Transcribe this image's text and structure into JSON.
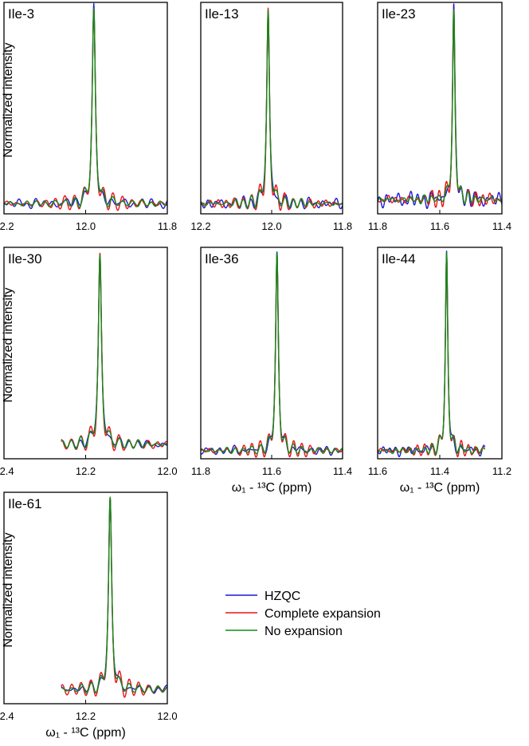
{
  "colors": {
    "HZQC": "#1a1adc",
    "Complete expansion": "#e8141b",
    "No expansion": "#158a15"
  },
  "legend": [
    "HZQC",
    "Complete expansion",
    "No expansion"
  ],
  "chart_data": [
    {
      "type": "line",
      "title": "Ile-3",
      "xlabel": "",
      "ylabel": "Normalized intensity",
      "xlim": [
        12.2,
        11.8
      ],
      "xticks": [
        "12.2",
        "12.0",
        "11.8"
      ],
      "xtick_values": [
        12.2,
        12.0,
        11.8
      ],
      "data_xrange": [
        12.2,
        11.8
      ],
      "peak": 11.98,
      "baseline": 0.03,
      "sidelobe_amp": {
        "HZQC": 0.03,
        "Complete expansion": 0.07,
        "No expansion": 0.045
      },
      "noise": {
        "HZQC": 0.012,
        "Complete expansion": 0.004,
        "No expansion": 0.005
      },
      "series": [
        {
          "name": "HZQC"
        },
        {
          "name": "Complete expansion"
        },
        {
          "name": "No expansion"
        }
      ]
    },
    {
      "type": "line",
      "title": "Ile-13",
      "xlabel": "",
      "ylabel": "",
      "xlim": [
        12.2,
        11.8
      ],
      "xticks": [
        "12.2",
        "12.0",
        "11.8"
      ],
      "xtick_values": [
        12.2,
        12.0,
        11.8
      ],
      "data_xrange": [
        12.2,
        11.8
      ],
      "peak": 12.01,
      "baseline": 0.03,
      "sidelobe_amp": {
        "HZQC": 0.03,
        "Complete expansion": 0.075,
        "No expansion": 0.045
      },
      "noise": {
        "HZQC": 0.014,
        "Complete expansion": 0.005,
        "No expansion": 0.005
      },
      "series": [
        {
          "name": "HZQC"
        },
        {
          "name": "Complete expansion"
        },
        {
          "name": "No expansion"
        }
      ]
    },
    {
      "type": "line",
      "title": "Ile-23",
      "xlabel": "",
      "ylabel": "",
      "xlim": [
        11.8,
        11.4
      ],
      "xticks": [
        "11.8",
        "11.6",
        "11.4"
      ],
      "xtick_values": [
        11.8,
        11.6,
        11.4
      ],
      "data_xrange": [
        11.8,
        11.4
      ],
      "peak": 11.555,
      "baseline": 0.05,
      "sidelobe_amp": {
        "HZQC": 0.035,
        "Complete expansion": 0.07,
        "No expansion": 0.04
      },
      "noise": {
        "HZQC": 0.02,
        "Complete expansion": 0.008,
        "No expansion": 0.006
      },
      "series": [
        {
          "name": "HZQC"
        },
        {
          "name": "Complete expansion"
        },
        {
          "name": "No expansion"
        }
      ]
    },
    {
      "type": "line",
      "title": "Ile-30",
      "xlabel": "",
      "ylabel": "Normalized intensity",
      "xlim": [
        12.4,
        12.0
      ],
      "xticks": [
        "12.4",
        "12.2",
        "12.0"
      ],
      "xtick_values": [
        12.4,
        12.2,
        12.0
      ],
      "data_xrange": [
        12.26,
        12.0
      ],
      "peak": 12.165,
      "baseline": 0.05,
      "sidelobe_amp": {
        "HZQC": 0.03,
        "Complete expansion": 0.07,
        "No expansion": 0.045
      },
      "noise": {
        "HZQC": 0.008,
        "Complete expansion": 0.004,
        "No expansion": 0.004
      },
      "series": [
        {
          "name": "HZQC"
        },
        {
          "name": "Complete expansion"
        },
        {
          "name": "No expansion"
        }
      ]
    },
    {
      "type": "line",
      "title": "Ile-36",
      "xlabel": "ω₁ - ¹³C (ppm)",
      "ylabel": "",
      "xlim": [
        11.8,
        11.4
      ],
      "xticks": [
        "11.8",
        "11.6",
        "11.4"
      ],
      "xtick_values": [
        11.8,
        11.6,
        11.4
      ],
      "data_xrange": [
        11.8,
        11.4
      ],
      "peak": 11.585,
      "baseline": 0.02,
      "sidelobe_amp": {
        "HZQC": 0.03,
        "Complete expansion": 0.07,
        "No expansion": 0.045
      },
      "noise": {
        "HZQC": 0.01,
        "Complete expansion": 0.004,
        "No expansion": 0.004
      },
      "series": [
        {
          "name": "HZQC"
        },
        {
          "name": "Complete expansion"
        },
        {
          "name": "No expansion"
        }
      ]
    },
    {
      "type": "line",
      "title": "Ile-44",
      "xlabel": "ω₁ - ¹³C (ppm)",
      "ylabel": "",
      "xlim": [
        11.6,
        11.2
      ],
      "xticks": [
        "11.6",
        "11.4",
        "11.2"
      ],
      "xtick_values": [
        11.6,
        11.4,
        11.2
      ],
      "data_xrange": [
        11.6,
        11.255
      ],
      "peak": 11.378,
      "baseline": 0.02,
      "sidelobe_amp": {
        "HZQC": 0.03,
        "Complete expansion": 0.06,
        "No expansion": 0.045
      },
      "noise": {
        "HZQC": 0.012,
        "Complete expansion": 0.005,
        "No expansion": 0.005
      },
      "series": [
        {
          "name": "HZQC"
        },
        {
          "name": "Complete expansion"
        },
        {
          "name": "No expansion"
        }
      ]
    },
    {
      "type": "line",
      "title": "Ile-61",
      "xlabel": "ω₁ - ¹³C (ppm)",
      "ylabel": "Normalized intensity",
      "xlim": [
        12.4,
        12.0
      ],
      "xticks": [
        "12.4",
        "12.2",
        "12.0"
      ],
      "xtick_values": [
        12.4,
        12.2,
        12.0
      ],
      "data_xrange": [
        12.26,
        12.0
      ],
      "peak": 12.14,
      "baseline": 0.05,
      "sidelobe_amp": {
        "HZQC": 0.03,
        "Complete expansion": 0.075,
        "No expansion": 0.045
      },
      "noise": {
        "HZQC": 0.008,
        "Complete expansion": 0.004,
        "No expansion": 0.004
      },
      "series": [
        {
          "name": "HZQC"
        },
        {
          "name": "Complete expansion"
        },
        {
          "name": "No expansion"
        }
      ]
    }
  ]
}
